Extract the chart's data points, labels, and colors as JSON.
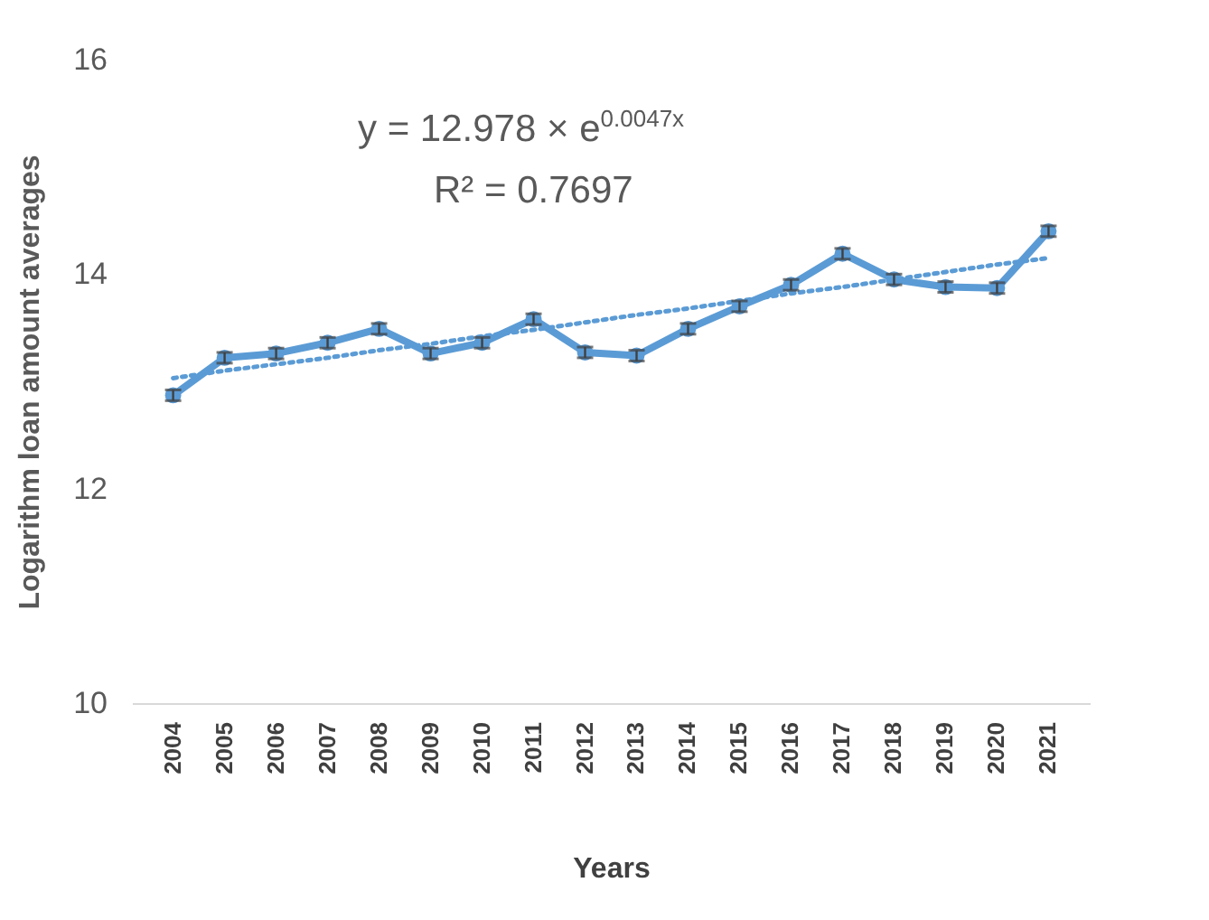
{
  "chart_data": {
    "type": "line",
    "xlabel": "Years",
    "ylabel": "Logarithm loan amount averages",
    "categories": [
      "2004",
      "2005",
      "2006",
      "2007",
      "2008",
      "2009",
      "2010",
      "2011",
      "2012",
      "2013",
      "2014",
      "2015",
      "2016",
      "2017",
      "2018",
      "2019",
      "2020",
      "2021"
    ],
    "series": [
      {
        "color": "#5b9bd5",
        "values": [
          12.87,
          13.22,
          13.26,
          13.36,
          13.49,
          13.26,
          13.36,
          13.58,
          13.27,
          13.24,
          13.49,
          13.7,
          13.9,
          14.19,
          13.95,
          13.88,
          13.87,
          14.4
        ],
        "errors": [
          0.05,
          0.05,
          0.05,
          0.05,
          0.05,
          0.05,
          0.05,
          0.05,
          0.05,
          0.05,
          0.05,
          0.05,
          0.05,
          0.05,
          0.05,
          0.05,
          0.05,
          0.05
        ],
        "marker": "circle",
        "line_style": "solid"
      },
      {
        "color": "#5b9bd5",
        "values": [
          13.03,
          13.1,
          13.16,
          13.22,
          13.29,
          13.35,
          13.42,
          13.48,
          13.55,
          13.62,
          13.68,
          13.75,
          13.82,
          13.88,
          13.95,
          14.02,
          14.09,
          14.15
        ],
        "marker": "none",
        "line_style": "dotted"
      }
    ],
    "ylim": [
      10,
      16
    ],
    "yticks": [
      10,
      12,
      14,
      16
    ],
    "annotations": [
      "y = 12.978 × e$^{0.0047x}$",
      "R² = 0.7697"
    ]
  }
}
